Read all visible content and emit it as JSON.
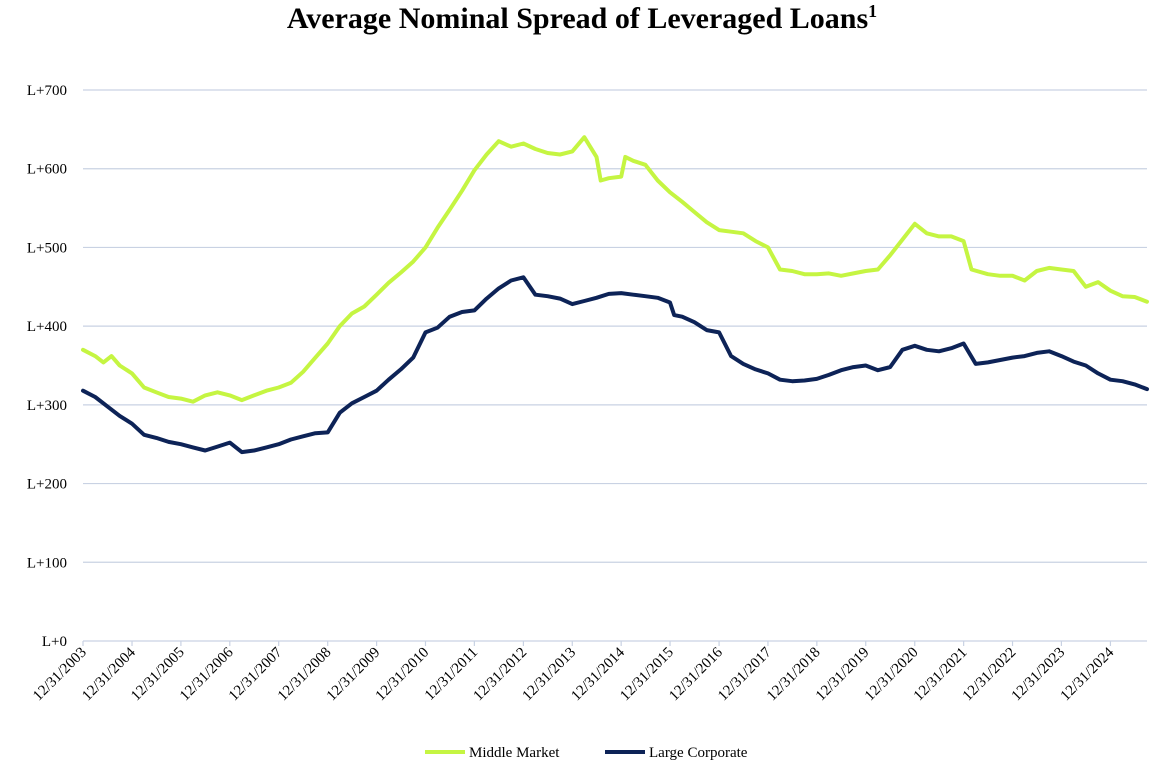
{
  "chart_data": {
    "type": "line",
    "title": "Average Nominal Spread of Leveraged Loans",
    "title_superscript": "1",
    "xlabel": "",
    "ylabel": "",
    "ylim": [
      0,
      700
    ],
    "y_ticks": [
      {
        "value": 0,
        "label": "L+0"
      },
      {
        "value": 100,
        "label": "L+100"
      },
      {
        "value": 200,
        "label": "L+200"
      },
      {
        "value": 300,
        "label": "L+300"
      },
      {
        "value": 400,
        "label": "L+400"
      },
      {
        "value": 500,
        "label": "L+500"
      },
      {
        "value": 600,
        "label": "L+600"
      },
      {
        "value": 700,
        "label": "L+700"
      }
    ],
    "x_range": [
      "2003-12-31",
      "2025-09-30"
    ],
    "x_ticks": [
      {
        "date": "2003-12-31",
        "label": "12/31/2003"
      },
      {
        "date": "2004-12-31",
        "label": "12/31/2004"
      },
      {
        "date": "2005-12-31",
        "label": "12/31/2005"
      },
      {
        "date": "2006-12-31",
        "label": "12/31/2006"
      },
      {
        "date": "2007-12-31",
        "label": "12/31/2007"
      },
      {
        "date": "2008-12-31",
        "label": "12/31/2008"
      },
      {
        "date": "2009-12-31",
        "label": "12/31/2009"
      },
      {
        "date": "2010-12-31",
        "label": "12/31/2010"
      },
      {
        "date": "2011-12-31",
        "label": "12/31/2011"
      },
      {
        "date": "2012-12-31",
        "label": "12/31/2012"
      },
      {
        "date": "2013-12-31",
        "label": "12/31/2013"
      },
      {
        "date": "2014-12-31",
        "label": "12/31/2014"
      },
      {
        "date": "2015-12-31",
        "label": "12/31/2015"
      },
      {
        "date": "2016-12-31",
        "label": "12/31/2016"
      },
      {
        "date": "2017-12-31",
        "label": "12/31/2017"
      },
      {
        "date": "2018-12-31",
        "label": "12/31/2018"
      },
      {
        "date": "2019-12-31",
        "label": "12/31/2019"
      },
      {
        "date": "2020-12-31",
        "label": "12/31/2020"
      },
      {
        "date": "2021-12-31",
        "label": "12/31/2021"
      },
      {
        "date": "2022-12-31",
        "label": "12/31/2022"
      },
      {
        "date": "2023-12-31",
        "label": "12/31/2023"
      },
      {
        "date": "2024-12-31",
        "label": "12/31/2024"
      }
    ],
    "grid": "horizontal",
    "legend_position": "bottom-center",
    "series": [
      {
        "name": "Middle Market",
        "color": "#c5f542",
        "points": [
          [
            "2003-12-31",
            370
          ],
          [
            "2004-03-31",
            362
          ],
          [
            "2004-05-31",
            354
          ],
          [
            "2004-07-31",
            362
          ],
          [
            "2004-09-30",
            350
          ],
          [
            "2004-12-31",
            340
          ],
          [
            "2005-03-31",
            322
          ],
          [
            "2005-06-30",
            316
          ],
          [
            "2005-09-30",
            310
          ],
          [
            "2005-12-31",
            308
          ],
          [
            "2006-03-31",
            304
          ],
          [
            "2006-06-30",
            312
          ],
          [
            "2006-09-30",
            316
          ],
          [
            "2006-12-31",
            312
          ],
          [
            "2007-03-31",
            306
          ],
          [
            "2007-06-30",
            312
          ],
          [
            "2007-09-30",
            318
          ],
          [
            "2007-12-31",
            322
          ],
          [
            "2008-03-31",
            328
          ],
          [
            "2008-06-30",
            342
          ],
          [
            "2008-09-30",
            360
          ],
          [
            "2008-12-31",
            378
          ],
          [
            "2009-03-31",
            400
          ],
          [
            "2009-06-30",
            416
          ],
          [
            "2009-09-30",
            425
          ],
          [
            "2009-12-31",
            440
          ],
          [
            "2010-03-31",
            455
          ],
          [
            "2010-06-30",
            468
          ],
          [
            "2010-09-30",
            482
          ],
          [
            "2010-12-31",
            500
          ],
          [
            "2011-03-31",
            525
          ],
          [
            "2011-06-30",
            548
          ],
          [
            "2011-09-30",
            572
          ],
          [
            "2011-12-31",
            598
          ],
          [
            "2012-03-31",
            618
          ],
          [
            "2012-06-30",
            635
          ],
          [
            "2012-09-30",
            628
          ],
          [
            "2012-12-31",
            632
          ],
          [
            "2013-03-31",
            625
          ],
          [
            "2013-06-30",
            620
          ],
          [
            "2013-09-30",
            618
          ],
          [
            "2013-12-31",
            622
          ],
          [
            "2014-03-31",
            640
          ],
          [
            "2014-06-30",
            615
          ],
          [
            "2014-07-31",
            585
          ],
          [
            "2014-09-30",
            588
          ],
          [
            "2014-12-31",
            590
          ],
          [
            "2015-01-31",
            615
          ],
          [
            "2015-03-31",
            610
          ],
          [
            "2015-06-30",
            605
          ],
          [
            "2015-09-30",
            585
          ],
          [
            "2015-12-31",
            570
          ],
          [
            "2016-03-31",
            558
          ],
          [
            "2016-06-30",
            545
          ],
          [
            "2016-09-30",
            532
          ],
          [
            "2016-12-31",
            522
          ],
          [
            "2017-03-31",
            520
          ],
          [
            "2017-06-30",
            518
          ],
          [
            "2017-09-30",
            508
          ],
          [
            "2017-12-31",
            500
          ],
          [
            "2018-03-31",
            472
          ],
          [
            "2018-06-30",
            470
          ],
          [
            "2018-09-30",
            466
          ],
          [
            "2018-12-31",
            466
          ],
          [
            "2019-03-31",
            467
          ],
          [
            "2019-06-30",
            464
          ],
          [
            "2019-09-30",
            467
          ],
          [
            "2019-12-31",
            470
          ],
          [
            "2020-03-31",
            472
          ],
          [
            "2020-06-30",
            490
          ],
          [
            "2020-09-30",
            510
          ],
          [
            "2020-12-31",
            530
          ],
          [
            "2021-03-31",
            518
          ],
          [
            "2021-06-30",
            514
          ],
          [
            "2021-09-30",
            514
          ],
          [
            "2021-12-31",
            508
          ],
          [
            "2022-02-28",
            472
          ],
          [
            "2022-06-30",
            466
          ],
          [
            "2022-09-30",
            464
          ],
          [
            "2022-12-31",
            464
          ],
          [
            "2023-03-31",
            458
          ],
          [
            "2023-06-30",
            470
          ],
          [
            "2023-09-30",
            474
          ],
          [
            "2023-12-31",
            472
          ],
          [
            "2024-03-31",
            470
          ],
          [
            "2024-06-30",
            450
          ],
          [
            "2024-09-30",
            456
          ],
          [
            "2024-12-31",
            445
          ],
          [
            "2025-03-31",
            438
          ],
          [
            "2025-06-30",
            437
          ],
          [
            "2025-09-30",
            431
          ]
        ]
      },
      {
        "name": "Large Corporate",
        "color": "#0d2357",
        "points": [
          [
            "2003-12-31",
            318
          ],
          [
            "2004-03-31",
            310
          ],
          [
            "2004-06-30",
            298
          ],
          [
            "2004-09-30",
            286
          ],
          [
            "2004-12-31",
            276
          ],
          [
            "2005-03-31",
            262
          ],
          [
            "2005-06-30",
            258
          ],
          [
            "2005-09-30",
            253
          ],
          [
            "2005-12-31",
            250
          ],
          [
            "2006-03-31",
            246
          ],
          [
            "2006-06-30",
            242
          ],
          [
            "2006-09-30",
            247
          ],
          [
            "2006-12-31",
            252
          ],
          [
            "2007-03-31",
            240
          ],
          [
            "2007-06-30",
            242
          ],
          [
            "2007-09-30",
            246
          ],
          [
            "2007-12-31",
            250
          ],
          [
            "2008-03-31",
            256
          ],
          [
            "2008-06-30",
            260
          ],
          [
            "2008-09-30",
            264
          ],
          [
            "2008-12-31",
            265
          ],
          [
            "2009-03-31",
            290
          ],
          [
            "2009-06-30",
            302
          ],
          [
            "2009-09-30",
            310
          ],
          [
            "2009-12-31",
            318
          ],
          [
            "2010-03-31",
            332
          ],
          [
            "2010-06-30",
            345
          ],
          [
            "2010-09-30",
            360
          ],
          [
            "2010-12-31",
            392
          ],
          [
            "2011-03-31",
            398
          ],
          [
            "2011-06-30",
            412
          ],
          [
            "2011-09-30",
            418
          ],
          [
            "2011-12-31",
            420
          ],
          [
            "2012-03-31",
            435
          ],
          [
            "2012-06-30",
            448
          ],
          [
            "2012-09-30",
            458
          ],
          [
            "2012-12-31",
            462
          ],
          [
            "2013-03-31",
            440
          ],
          [
            "2013-06-30",
            438
          ],
          [
            "2013-09-30",
            435
          ],
          [
            "2013-12-31",
            428
          ],
          [
            "2014-03-31",
            432
          ],
          [
            "2014-06-30",
            436
          ],
          [
            "2014-09-30",
            441
          ],
          [
            "2014-12-31",
            442
          ],
          [
            "2015-03-31",
            440
          ],
          [
            "2015-06-30",
            438
          ],
          [
            "2015-09-30",
            436
          ],
          [
            "2015-12-31",
            430
          ],
          [
            "2016-01-31",
            414
          ],
          [
            "2016-03-31",
            412
          ],
          [
            "2016-06-30",
            405
          ],
          [
            "2016-09-30",
            395
          ],
          [
            "2016-12-31",
            392
          ],
          [
            "2017-03-31",
            362
          ],
          [
            "2017-06-30",
            352
          ],
          [
            "2017-09-30",
            345
          ],
          [
            "2017-12-31",
            340
          ],
          [
            "2018-03-31",
            332
          ],
          [
            "2018-06-30",
            330
          ],
          [
            "2018-09-30",
            331
          ],
          [
            "2018-12-31",
            333
          ],
          [
            "2019-03-31",
            338
          ],
          [
            "2019-06-30",
            344
          ],
          [
            "2019-09-30",
            348
          ],
          [
            "2019-12-31",
            350
          ],
          [
            "2020-03-31",
            344
          ],
          [
            "2020-06-30",
            348
          ],
          [
            "2020-09-30",
            370
          ],
          [
            "2020-12-31",
            375
          ],
          [
            "2021-03-31",
            370
          ],
          [
            "2021-06-30",
            368
          ],
          [
            "2021-09-30",
            372
          ],
          [
            "2021-12-31",
            378
          ],
          [
            "2022-03-31",
            352
          ],
          [
            "2022-06-30",
            354
          ],
          [
            "2022-09-30",
            357
          ],
          [
            "2022-12-31",
            360
          ],
          [
            "2023-03-31",
            362
          ],
          [
            "2023-06-30",
            366
          ],
          [
            "2023-09-30",
            368
          ],
          [
            "2023-12-31",
            362
          ],
          [
            "2024-03-31",
            355
          ],
          [
            "2024-06-30",
            350
          ],
          [
            "2024-09-30",
            340
          ],
          [
            "2024-12-31",
            332
          ],
          [
            "2025-03-31",
            330
          ],
          [
            "2025-06-30",
            326
          ],
          [
            "2025-09-30",
            320
          ]
        ]
      }
    ]
  }
}
